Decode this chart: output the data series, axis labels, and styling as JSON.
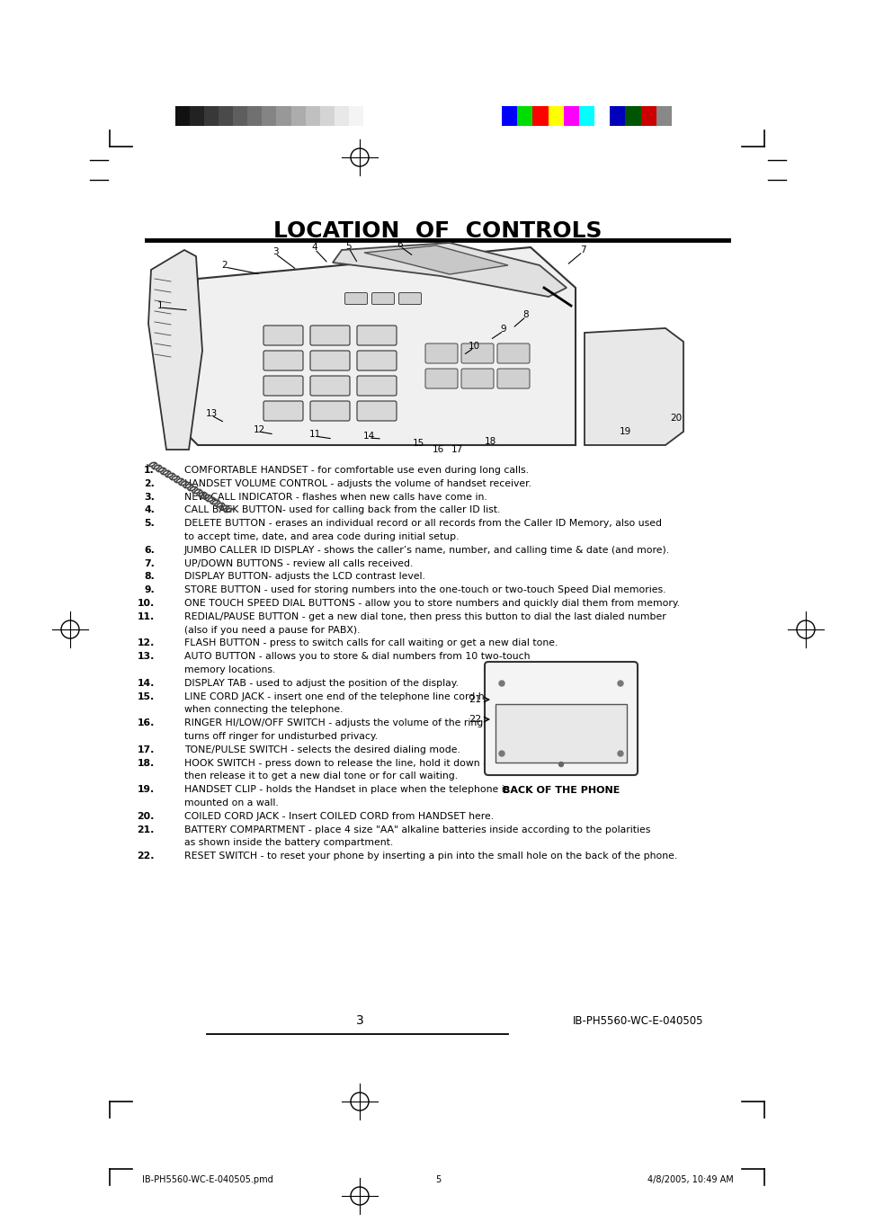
{
  "title": "LOCATION  OF  CONTROLS",
  "bg_color": "#ffffff",
  "color_bars_left": [
    "#111111",
    "#222222",
    "#383838",
    "#4a4a4a",
    "#5e5e5e",
    "#707070",
    "#848484",
    "#989898",
    "#acacac",
    "#c0c0c0",
    "#d4d4d4",
    "#e8e8e8",
    "#f4f4f4",
    "#ffffff"
  ],
  "color_bars_right": [
    "#0000ff",
    "#00dd00",
    "#ff0000",
    "#ffff00",
    "#ff00ff",
    "#00ffff",
    "#ffffff",
    "#0000bb",
    "#005500",
    "#cc0000",
    "#888888"
  ],
  "body_lines": [
    [
      "1.",
      "COMFORTABLE HANDSET - for comfortable use even during long calls."
    ],
    [
      "2.",
      "HANDSET VOLUME CONTROL - adjusts the volume of handset receiver."
    ],
    [
      "3.",
      "NEW CALL INDICATOR - flashes when new calls have come in."
    ],
    [
      "4.",
      "CALL BACK BUTTON- used for calling back from the caller ID list."
    ],
    [
      "5.",
      "DELETE BUTTON - erases an individual record or all records from the Caller ID Memory, also used"
    ],
    [
      "",
      "to accept time, date, and area code during initial setup."
    ],
    [
      "6.",
      "JUMBO CALLER ID DISPLAY - shows the caller’s name, number, and calling time & date (and more)."
    ],
    [
      "7.",
      "UP/DOWN BUTTONS - review all calls received."
    ],
    [
      "8.",
      "DISPLAY BUTTON- adjusts the LCD contrast level."
    ],
    [
      "9.",
      "STORE BUTTON - used for storing numbers into the one-touch or two-touch Speed Dial memories."
    ],
    [
      "10.",
      "ONE TOUCH SPEED DIAL BUTTONS - allow you to store numbers and quickly dial them from memory."
    ],
    [
      "11.",
      "REDIAL/PAUSE BUTTON - get a new dial tone, then press this button to dial the last dialed number"
    ],
    [
      "",
      "(also if you need a pause for PABX)."
    ],
    [
      "12.",
      "FLASH BUTTON - press to switch calls for call waiting or get a new dial tone."
    ],
    [
      "13.",
      "AUTO BUTTON - allows you to store & dial numbers from 10 two-touch"
    ],
    [
      "",
      "memory locations."
    ],
    [
      "14.",
      "DISPLAY TAB - used to adjust the position of the display."
    ],
    [
      "15.",
      "LINE CORD JACK - insert one end of the telephone line cord here"
    ],
    [
      "",
      "when connecting the telephone."
    ],
    [
      "16.",
      "RINGER HI/LOW/OFF SWITCH - adjusts the volume of the ringer or"
    ],
    [
      "",
      "turns off ringer for undisturbed privacy."
    ],
    [
      "17.",
      "TONE/PULSE SWITCH - selects the desired dialing mode."
    ],
    [
      "18.",
      "HOOK SWITCH - press down to release the line, hold it down and"
    ],
    [
      "",
      "then release it to get a new dial tone or for call waiting."
    ],
    [
      "19.",
      "HANDSET CLIP - holds the Handset in place when the telephone is"
    ],
    [
      "",
      "mounted on a wall."
    ],
    [
      "20.",
      "COILED CORD JACK - Insert COILED CORD from HANDSET here."
    ],
    [
      "21.",
      "BATTERY COMPARTMENT - place 4 size \"AA\" alkaline batteries inside according to the polarities"
    ],
    [
      "",
      "as shown inside the battery compartment."
    ],
    [
      "22.",
      "RESET SWITCH - to reset your phone by inserting a pin into the small hole on the back of the phone."
    ]
  ],
  "back_label": "BACK OF THE PHONE",
  "page_number": "3",
  "footer_left": "IB-PH5560-WC-E-040505.pmd",
  "footer_center": "5",
  "footer_right": "4/8/2005, 10:49 AM",
  "doc_id": "IB-PH5560-WC-E-040505"
}
